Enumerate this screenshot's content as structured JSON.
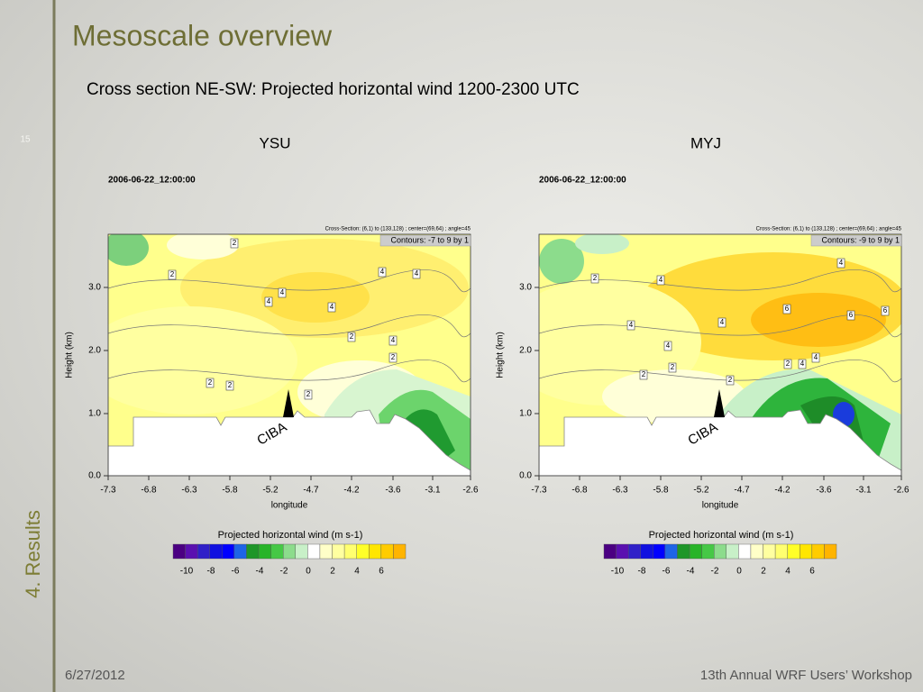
{
  "slide": {
    "title": "Mesoscale overview",
    "subtitle": "Cross section NE-SW: Projected horizontal wind 1200-2300 UTC",
    "page_number": "15",
    "section": "4. Results",
    "date": "6/27/2012",
    "footer": "13th Annual WRF Users’ Workshop"
  },
  "panels": [
    {
      "label": "YSU",
      "timestamp": "2006-06-22_12:00:00",
      "cross_section": "Cross-Section: (6,1) to (133,128) ; center=(69,64) ; angle=45",
      "contours": "Contours: -7 to 9 by 1",
      "y_axis_label": "Height (km)",
      "x_axis_label": "longitude",
      "yticks": [
        "0.0",
        "1.0",
        "2.0",
        "3.0"
      ],
      "xticks": [
        "-7.3",
        "-6.8",
        "-6.3",
        "-5.8",
        "-5.2",
        "-4.7",
        "-4.2",
        "-3.6",
        "-3.1",
        "-2.6"
      ],
      "site": "CIBA",
      "contour_labels": [
        "2",
        "2",
        "4",
        "4",
        "4",
        "4",
        "4",
        "2",
        "4",
        "2",
        "2",
        "2",
        "2"
      ],
      "colorbar": {
        "title": "Projected horizontal wind (m s-1)",
        "ticks": [
          "-10",
          "-8",
          "-6",
          "-4",
          "-2",
          "0",
          "2",
          "4",
          "6"
        ]
      }
    },
    {
      "label": "MYJ",
      "timestamp": "2006-06-22_12:00:00",
      "cross_section": "Cross-Section: (6,1) to (133,128) ; center=(69,64) ; angle=45",
      "contours": "Contours: -9 to 9 by 1",
      "y_axis_label": "Height (km)",
      "x_axis_label": "longitude",
      "yticks": [
        "0.0",
        "1.0",
        "2.0",
        "3.0"
      ],
      "xticks": [
        "-7.3",
        "-6.8",
        "-6.3",
        "-5.8",
        "-5.2",
        "-4.7",
        "-4.2",
        "-3.6",
        "-3.1",
        "-2.6"
      ],
      "site": "CIBA",
      "contour_labels": [
        "2",
        "4",
        "4",
        "6",
        "6",
        "6",
        "4",
        "4",
        "4",
        "2",
        "2",
        "2",
        "2",
        "4",
        "4"
      ],
      "colorbar": {
        "title": "Projected horizontal wind (m s-1)",
        "ticks": [
          "-10",
          "-8",
          "-6",
          "-4",
          "-2",
          "0",
          "2",
          "4",
          "6"
        ]
      }
    }
  ]
}
